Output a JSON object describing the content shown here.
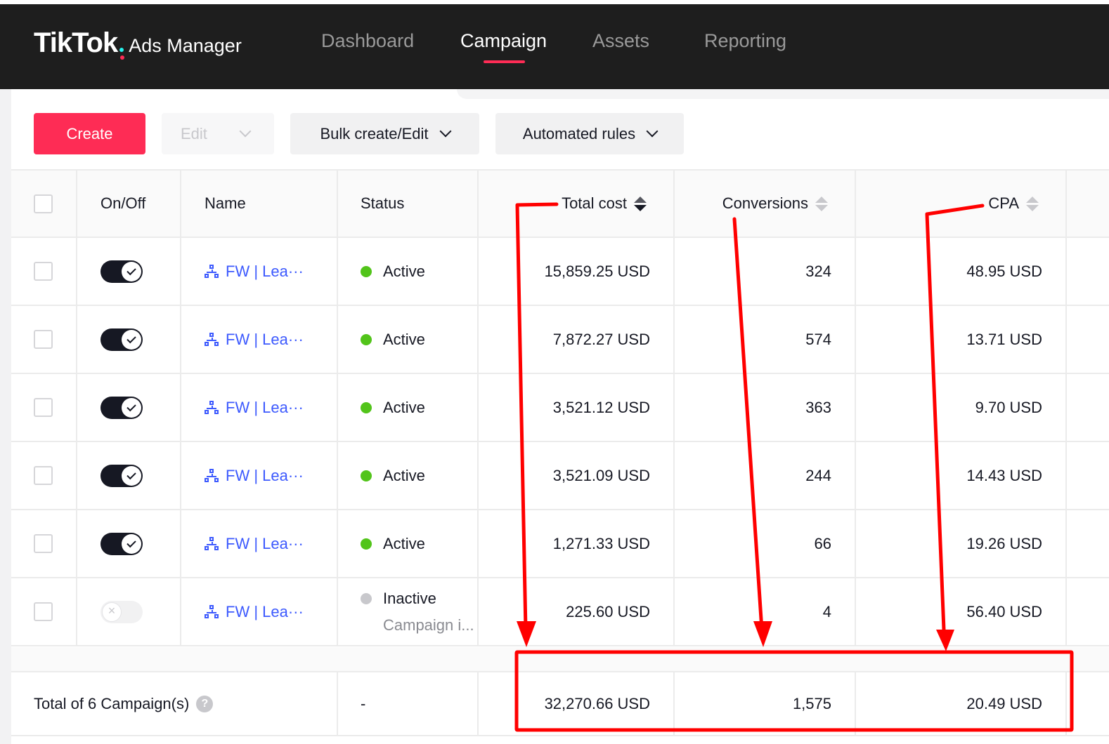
{
  "brand": {
    "name": "TikTok",
    "product": "Ads Manager"
  },
  "nav": {
    "dashboard": "Dashboard",
    "campaign": "Campaign",
    "assets": "Assets",
    "reporting": "Reporting",
    "active": "Campaign"
  },
  "toolbar": {
    "create": "Create",
    "edit": "Edit",
    "bulk": "Bulk create/Edit",
    "rules": "Automated rules"
  },
  "table": {
    "headers": {
      "onoff": "On/Off",
      "name": "Name",
      "status": "Status",
      "total_cost": "Total cost",
      "conversions": "Conversions",
      "cpa": "CPA"
    },
    "rows": [
      {
        "on": true,
        "name": "FW | Lea···",
        "status": "Active",
        "total_cost": "15,859.25 USD",
        "conversions": "324",
        "cpa": "48.95 USD"
      },
      {
        "on": true,
        "name": "FW | Lea···",
        "status": "Active",
        "total_cost": "7,872.27 USD",
        "conversions": "574",
        "cpa": "13.71 USD"
      },
      {
        "on": true,
        "name": "FW | Lea···",
        "status": "Active",
        "total_cost": "3,521.12 USD",
        "conversions": "363",
        "cpa": "9.70 USD"
      },
      {
        "on": true,
        "name": "FW | Lea···",
        "status": "Active",
        "total_cost": "3,521.09 USD",
        "conversions": "244",
        "cpa": "14.43 USD"
      },
      {
        "on": true,
        "name": "FW | Lea···",
        "status": "Active",
        "total_cost": "1,271.33 USD",
        "conversions": "66",
        "cpa": "19.26 USD"
      },
      {
        "on": false,
        "name": "FW | Lea···",
        "status": "Inactive",
        "status_sub": "Campaign i...",
        "total_cost": "225.60 USD",
        "conversions": "4",
        "cpa": "56.40 USD"
      }
    ],
    "total": {
      "label": "Total of 6 Campaign(s)",
      "help": "?",
      "status": "-",
      "total_cost": "32,270.66 USD",
      "conversions": "1,575",
      "cpa": "20.49 USD"
    }
  },
  "colors": {
    "brand_pink": "#fe2c55",
    "link_blue": "#3d5afe",
    "active_green": "#52c41a",
    "annotation_red": "#ff0000"
  },
  "icons": [
    "tree-icon",
    "chevron-down-icon",
    "sort-icon",
    "help-icon",
    "check-icon"
  ]
}
